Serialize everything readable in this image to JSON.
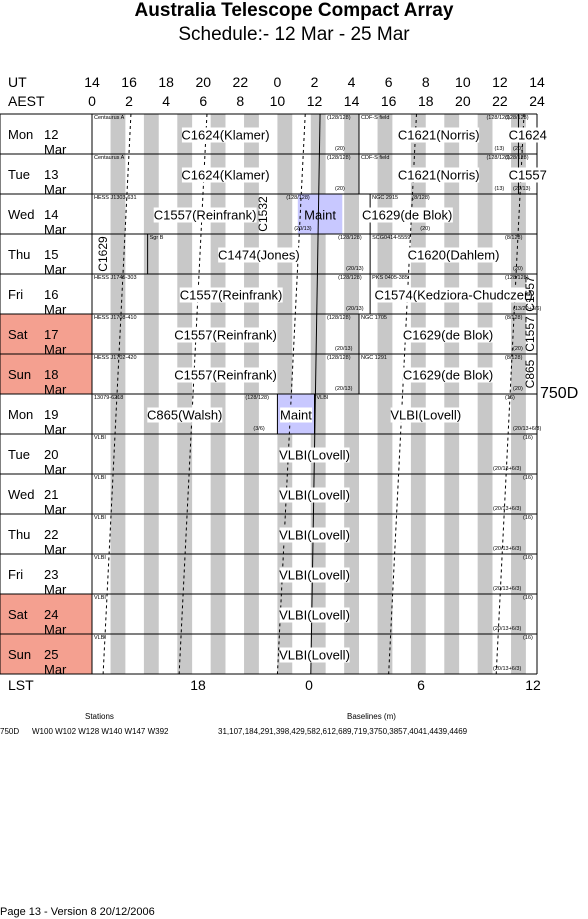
{
  "title": "Australia Telescope Compact Array",
  "subtitle": "Schedule:- 12 Mar - 25 Mar",
  "axes": {
    "ut_label": "UT",
    "aest_label": "AEST",
    "lst_label": "LST",
    "ut_ticks": [
      "14",
      "16",
      "18",
      "20",
      "22",
      "0",
      "2",
      "4",
      "6",
      "8",
      "10",
      "12",
      "14"
    ],
    "aest_ticks": [
      "0",
      "2",
      "4",
      "6",
      "8",
      "10",
      "12",
      "14",
      "16",
      "18",
      "20",
      "22",
      "24"
    ],
    "lst_ticks": [
      "18",
      "0",
      "6",
      "12"
    ]
  },
  "days": [
    {
      "dow": "Mon",
      "date": "12 Mar",
      "weekend": false
    },
    {
      "dow": "Tue",
      "date": "13 Mar",
      "weekend": false
    },
    {
      "dow": "Wed",
      "date": "14 Mar",
      "weekend": false
    },
    {
      "dow": "Thu",
      "date": "15 Mar",
      "weekend": false
    },
    {
      "dow": "Fri",
      "date": "16 Mar",
      "weekend": false
    },
    {
      "dow": "Sat",
      "date": "17 Mar",
      "weekend": true
    },
    {
      "dow": "Sun",
      "date": "18 Mar",
      "weekend": true
    },
    {
      "dow": "Mon",
      "date": "19 Mar",
      "weekend": false
    },
    {
      "dow": "Tue",
      "date": "20 Mar",
      "weekend": false
    },
    {
      "dow": "Wed",
      "date": "21 Mar",
      "weekend": false
    },
    {
      "dow": "Thu",
      "date": "22 Mar",
      "weekend": false
    },
    {
      "dow": "Fri",
      "date": "23 Mar",
      "weekend": false
    },
    {
      "dow": "Sat",
      "date": "24 Mar",
      "weekend": true
    },
    {
      "dow": "Sun",
      "date": "25 Mar",
      "weekend": true
    }
  ],
  "blocks": [
    {
      "row": 0,
      "start": 0,
      "end": 14.4,
      "label": "C1624(Klamer)",
      "source": "Centaurus A",
      "config": "(128/128)",
      "band": "(20)"
    },
    {
      "row": 0,
      "start": 14.4,
      "end": 23,
      "label": "C1621(Norris)",
      "source": "CDF-S field",
      "config": "(128/128)",
      "band": "(13)"
    },
    {
      "row": 0,
      "start": 23,
      "end": 26,
      "label": "C1624",
      "source": "",
      "config": "(128/128)",
      "band": "(20)"
    },
    {
      "row": 1,
      "start": 0,
      "end": 14.4,
      "label": "C1624(Klamer)",
      "source": "Centaurus A",
      "config": "(128/128)",
      "band": "(20)"
    },
    {
      "row": 1,
      "start": 14.4,
      "end": 23,
      "label": "C1621(Norris)",
      "source": "CDF-S field",
      "config": "(128/128)",
      "band": "(13)"
    },
    {
      "row": 1,
      "start": 23,
      "end": 26,
      "label": "C1557",
      "source": "",
      "config": "(128/128)",
      "band": "(20/13)"
    },
    {
      "row": 2,
      "start": 0,
      "end": 12.2,
      "label": "C1557(Reinfrank)",
      "source": "HESS J1303-631",
      "config": "(128/128)",
      "band": "(20/13)"
    },
    {
      "row": 2,
      "start": 15,
      "end": 19,
      "label": "C1629(de Blok)",
      "source": "NGC 2915",
      "config": "(8/128)",
      "band": "(20)"
    },
    {
      "row": 3,
      "start": 3,
      "end": 15,
      "label": "C1474(Jones)",
      "source": "Sgr B",
      "config": "(128/128)",
      "band": "(20/13)"
    },
    {
      "row": 3,
      "start": 15,
      "end": 26,
      "label": "C1620(Dahlem)",
      "source": "SCG0414-5559",
      "config": "(8/128)",
      "band": "(20)"
    },
    {
      "row": 4,
      "start": 0,
      "end": 15,
      "label": "C1557(Reinfrank)",
      "source": "HESS J1745-303",
      "config": "(128/128)",
      "band": "(20/13)"
    },
    {
      "row": 4,
      "start": 15,
      "end": 25.2,
      "label": "C1574(Kedziora-Chudczer)",
      "source": "PKS 0405-385",
      "config": "(128/128)",
      "band": "(13/20+3/6)"
    },
    {
      "row": 5,
      "start": 0,
      "end": 14.4,
      "label": "C1557(Reinfrank)",
      "source": "HESS J1708-410",
      "config": "(128/128)",
      "band": "(20/13)"
    },
    {
      "row": 5,
      "start": 14.4,
      "end": 25.2,
      "label": "C1629(de Blok)",
      "source": "NGC 1705",
      "config": "(8/128)",
      "band": "(20)"
    },
    {
      "row": 6,
      "start": 0,
      "end": 14.4,
      "label": "C1557(Reinfrank)",
      "source": "HESS J1702-420",
      "config": "(128/128)",
      "band": "(20/13)"
    },
    {
      "row": 6,
      "start": 14.4,
      "end": 25.2,
      "label": "C1629(de Blok)",
      "source": "NGC 1291",
      "config": "(8/128)",
      "band": "(20)"
    },
    {
      "row": 7,
      "start": 0,
      "end": 10,
      "label": "C865(Walsh)",
      "source": "13079-6218",
      "config": "(128/128)",
      "band": "(3/6)"
    },
    {
      "row": 7,
      "start": 10,
      "end": 12,
      "label": "Maint",
      "source": "",
      "config": "",
      "band": ""
    },
    {
      "row": 7,
      "start": 12,
      "end": 26,
      "label": "VLBI(Lovell)",
      "source": "VLBI",
      "config": "(16)",
      "band": "(20/13+6/3)"
    }
  ],
  "vertical_labels": [
    {
      "text": "C1532",
      "row": 2
    },
    {
      "text": "C1629",
      "row": 3
    },
    {
      "text": "C1557",
      "row": 4
    },
    {
      "text": "C1557",
      "row": 5
    },
    {
      "text": "C865",
      "row": 6
    }
  ],
  "maint_label": "Maint",
  "vlbi_rows": {
    "label": "VLBI(Lovell)",
    "source": "VLBI",
    "config": "(16)",
    "band": "(20/13+6/3)"
  },
  "array_config": "750D",
  "footer": {
    "stations_heading": "Stations",
    "baselines_heading": "Baselines (m)",
    "config_name": "750D",
    "stations": "W100 W102 W128 W140 W147 W392",
    "baselines": "31,107,184,291,398,429,582,612,689,719,3750,3857,4041,4439,4469",
    "page_info": "Page 13 - Version 8  20/12/2006"
  },
  "colors": {
    "weekend": "#f4a090",
    "night_stripe": "#c8c8c8",
    "maint": "#c8c8ff"
  }
}
